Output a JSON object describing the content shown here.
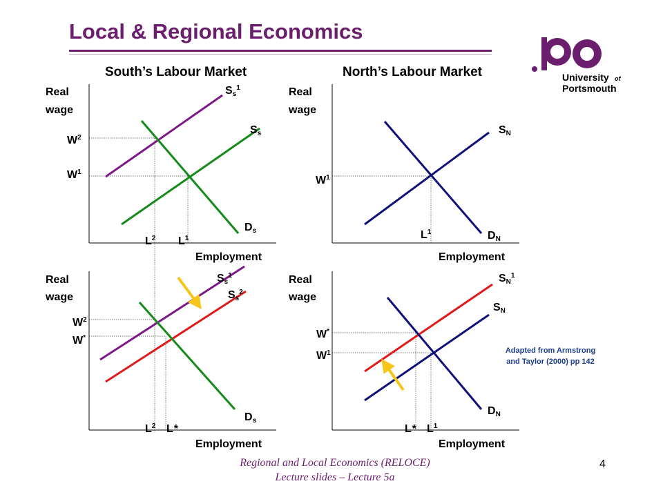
{
  "slide": {
    "title": "Local & Regional Economics",
    "footer_line1": "Regional and Local Economics (RELOCE)",
    "footer_line2": "Lecture slides – Lecture 5a",
    "page_number": "4",
    "logo": {
      "line1": "University",
      "of": "of",
      "line2": "Portsmouth",
      "color": "#6b1e6e"
    },
    "note_line1": "Adapted from Armstrong",
    "note_line2": "and Taylor (2000) pp 142"
  },
  "panels": {
    "south_title": "South’s Labour Market",
    "north_title": "North’s Labour Market",
    "axis_y_line1": "Real",
    "axis_y_line2": "wage",
    "axis_x": "Employment",
    "labels": {
      "S": "S",
      "D": "D",
      "W": "W",
      "L": "L",
      "sub_s": "s",
      "sub_N": "N",
      "sup1": "1",
      "sup2": "2",
      "supstar": "*",
      "star": "*"
    }
  },
  "colors": {
    "purple": "#7b1a86",
    "green": "#158a1a",
    "navy": "#10107a",
    "red": "#e01a1a",
    "arrow": "#f5c518"
  }
}
